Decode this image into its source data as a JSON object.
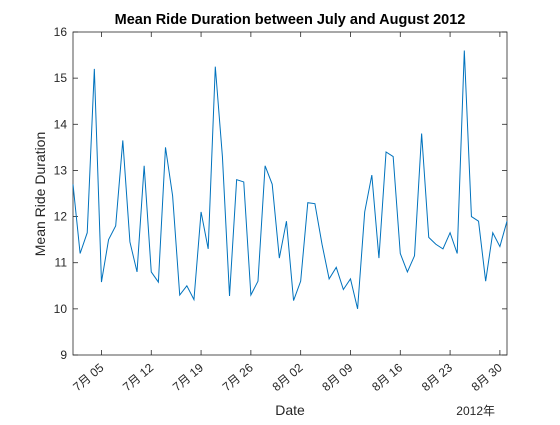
{
  "chart_data": {
    "type": "line",
    "title": "Mean Ride Duration between July and August 2012",
    "xlabel": "Date",
    "ylabel": "Mean Ride Duration",
    "year_label": "2012年",
    "x_start": "2012-07-01",
    "xlim": [
      "2012-07-01",
      "2012-08-31"
    ],
    "ylim": [
      9,
      16
    ],
    "yticks": [
      9,
      10,
      11,
      12,
      13,
      14,
      15,
      16
    ],
    "xticks": [
      {
        "date": "2012-07-05",
        "label": "7月 05"
      },
      {
        "date": "2012-07-12",
        "label": "7月 12"
      },
      {
        "date": "2012-07-19",
        "label": "7月 19"
      },
      {
        "date": "2012-07-26",
        "label": "7月 26"
      },
      {
        "date": "2012-08-02",
        "label": "8月 02"
      },
      {
        "date": "2012-08-09",
        "label": "8月 09"
      },
      {
        "date": "2012-08-16",
        "label": "8月 16"
      },
      {
        "date": "2012-08-23",
        "label": "8月 23"
      },
      {
        "date": "2012-08-30",
        "label": "8月 30"
      }
    ],
    "grid": false,
    "line_color": "#0072BD",
    "series": [
      {
        "dates": [
          "2012-07-01",
          "2012-07-02",
          "2012-07-03",
          "2012-07-04",
          "2012-07-05",
          "2012-07-06",
          "2012-07-07",
          "2012-07-08",
          "2012-07-09",
          "2012-07-10",
          "2012-07-11",
          "2012-07-12",
          "2012-07-13",
          "2012-07-14",
          "2012-07-15",
          "2012-07-16",
          "2012-07-17",
          "2012-07-18",
          "2012-07-19",
          "2012-07-20",
          "2012-07-21",
          "2012-07-22",
          "2012-07-23",
          "2012-07-24",
          "2012-07-25",
          "2012-07-26",
          "2012-07-27",
          "2012-07-28",
          "2012-07-29",
          "2012-07-30",
          "2012-07-31",
          "2012-08-01",
          "2012-08-02",
          "2012-08-03",
          "2012-08-04",
          "2012-08-05",
          "2012-08-06",
          "2012-08-07",
          "2012-08-08",
          "2012-08-09",
          "2012-08-10",
          "2012-08-11",
          "2012-08-12",
          "2012-08-13",
          "2012-08-14",
          "2012-08-15",
          "2012-08-16",
          "2012-08-17",
          "2012-08-18",
          "2012-08-19",
          "2012-08-20",
          "2012-08-21",
          "2012-08-22",
          "2012-08-23",
          "2012-08-24",
          "2012-08-25",
          "2012-08-26",
          "2012-08-27",
          "2012-08-28",
          "2012-08-29",
          "2012-08-30",
          "2012-08-31"
        ],
        "values": [
          12.7,
          11.2,
          11.65,
          15.2,
          10.58,
          11.5,
          11.8,
          13.65,
          11.45,
          10.8,
          13.1,
          10.8,
          10.58,
          13.5,
          12.45,
          10.3,
          10.5,
          10.2,
          12.1,
          11.3,
          15.25,
          13.3,
          10.28,
          12.8,
          12.75,
          10.3,
          10.6,
          13.1,
          12.7,
          11.1,
          11.9,
          10.18,
          10.6,
          12.3,
          12.28,
          11.4,
          10.65,
          10.9,
          10.42,
          10.65,
          10.0,
          12.1,
          12.9,
          11.1,
          13.4,
          13.3,
          11.2,
          10.8,
          11.15,
          13.8,
          11.55,
          11.4,
          11.3,
          11.65,
          11.2,
          15.6,
          12.0,
          11.9,
          10.6,
          11.65,
          11.35,
          11.9
        ]
      }
    ]
  }
}
